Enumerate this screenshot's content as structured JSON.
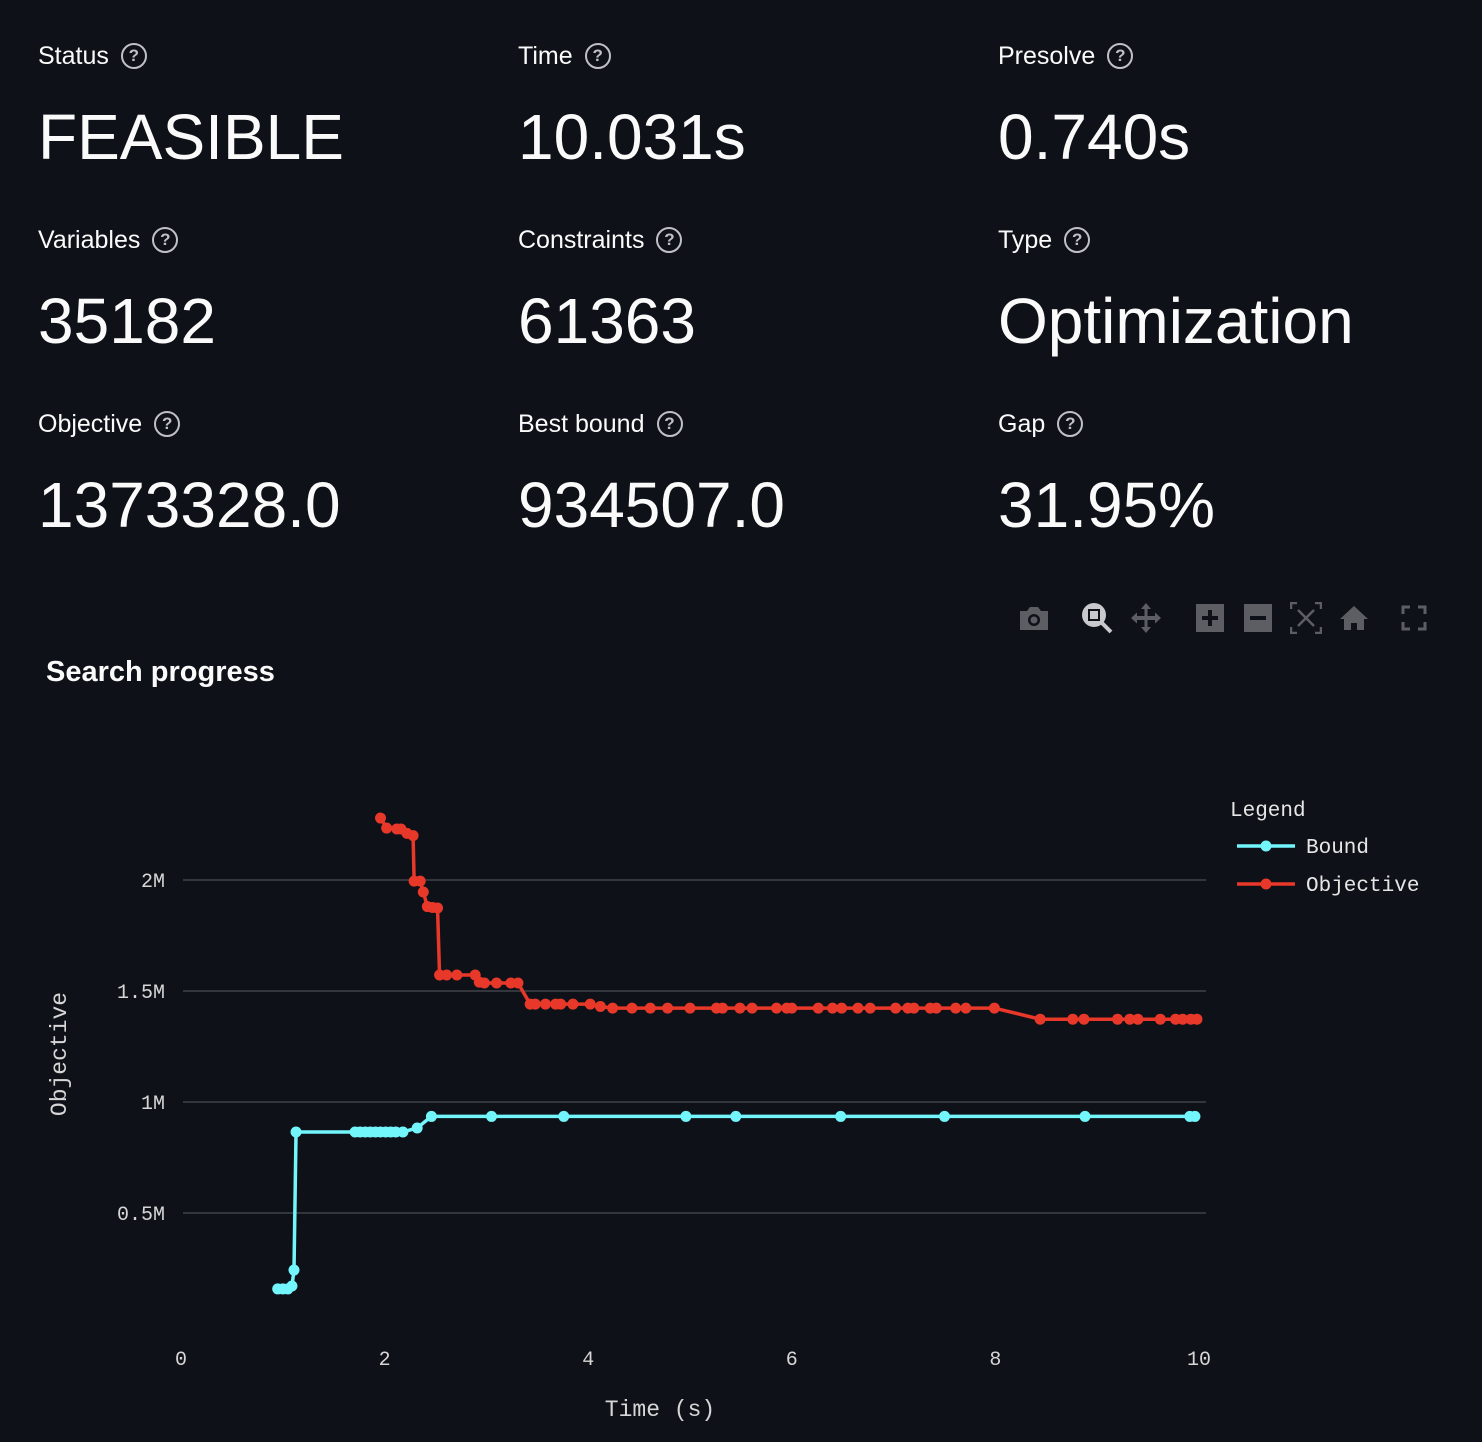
{
  "metrics": [
    {
      "label": "Status",
      "value": "FEASIBLE"
    },
    {
      "label": "Time",
      "value": "10.031s"
    },
    {
      "label": "Presolve",
      "value": "0.740s"
    },
    {
      "label": "Variables",
      "value": "35182"
    },
    {
      "label": "Constraints",
      "value": "61363"
    },
    {
      "label": "Type",
      "value": "Optimization"
    },
    {
      "label": "Objective",
      "value": "1373328.0"
    },
    {
      "label": "Best bound",
      "value": "934507.0"
    },
    {
      "label": "Gap",
      "value": "31.95%"
    }
  ],
  "help_glyph": "?",
  "toolbar": [
    "camera-icon",
    "zoom-icon",
    "pan-icon",
    "zoom-in-icon",
    "zoom-out-icon",
    "autoscale-icon",
    "home-icon",
    "fullscreen-icon"
  ],
  "chart_title": "Search progress",
  "chart_data": {
    "type": "line",
    "title": "Search progress",
    "xlabel": "Time (s)",
    "ylabel": "Objective",
    "xlim": [
      0,
      10.2
    ],
    "ylim": [
      0,
      2.4
    ],
    "x_ticks": [
      "0",
      "2",
      "4",
      "6",
      "8",
      "10"
    ],
    "y_ticks": [
      "0.5M",
      "1M",
      "1.5M",
      "2M"
    ],
    "grid": "horizontal",
    "legend_title": "Legend",
    "legend_position": "top-right",
    "series": [
      {
        "name": "Bound",
        "color": "#72f6fb",
        "x": [
          0.95,
          1.0,
          1.05,
          1.09,
          1.11,
          1.13,
          1.71,
          1.76,
          1.81,
          1.86,
          1.91,
          1.96,
          2.01,
          2.06,
          2.11,
          2.18,
          2.32,
          2.46,
          3.05,
          3.76,
          4.96,
          5.45,
          6.48,
          7.5,
          8.88,
          9.91,
          9.96
        ],
        "y": [
          0.158,
          0.158,
          0.158,
          0.171,
          0.243,
          0.865,
          0.865,
          0.865,
          0.865,
          0.865,
          0.865,
          0.865,
          0.865,
          0.865,
          0.865,
          0.865,
          0.883,
          0.935,
          0.935,
          0.935,
          0.935,
          0.935,
          0.935,
          0.935,
          0.935,
          0.935,
          0.935
        ]
      },
      {
        "name": "Objective",
        "color": "#e8382a",
        "x": [
          1.96,
          2.02,
          2.12,
          2.16,
          2.22,
          2.28,
          2.29,
          2.35,
          2.38,
          2.42,
          2.47,
          2.52,
          2.54,
          2.61,
          2.71,
          2.89,
          2.93,
          2.98,
          3.1,
          3.24,
          3.31,
          3.43,
          3.48,
          3.58,
          3.68,
          3.73,
          3.85,
          4.02,
          4.12,
          4.24,
          4.43,
          4.61,
          4.78,
          5.0,
          5.26,
          5.32,
          5.49,
          5.61,
          5.85,
          5.95,
          6.0,
          6.26,
          6.4,
          6.49,
          6.65,
          6.77,
          7.02,
          7.14,
          7.2,
          7.36,
          7.42,
          7.61,
          7.71,
          7.99,
          8.44,
          8.76,
          8.87,
          9.2,
          9.32,
          9.4,
          9.62,
          9.77,
          9.84,
          9.92,
          9.98
        ],
        "y": [
          2.279,
          2.234,
          2.23,
          2.23,
          2.21,
          2.2,
          1.995,
          1.995,
          1.946,
          1.88,
          1.876,
          1.874,
          1.572,
          1.572,
          1.572,
          1.572,
          1.54,
          1.536,
          1.536,
          1.536,
          1.536,
          1.441,
          1.441,
          1.441,
          1.441,
          1.441,
          1.441,
          1.441,
          1.43,
          1.423,
          1.423,
          1.423,
          1.423,
          1.423,
          1.423,
          1.423,
          1.423,
          1.423,
          1.423,
          1.423,
          1.423,
          1.423,
          1.423,
          1.423,
          1.423,
          1.423,
          1.423,
          1.423,
          1.423,
          1.423,
          1.423,
          1.423,
          1.423,
          1.423,
          1.373,
          1.373,
          1.373,
          1.373,
          1.373,
          1.373,
          1.373,
          1.373,
          1.373,
          1.373,
          1.373
        ]
      }
    ]
  }
}
